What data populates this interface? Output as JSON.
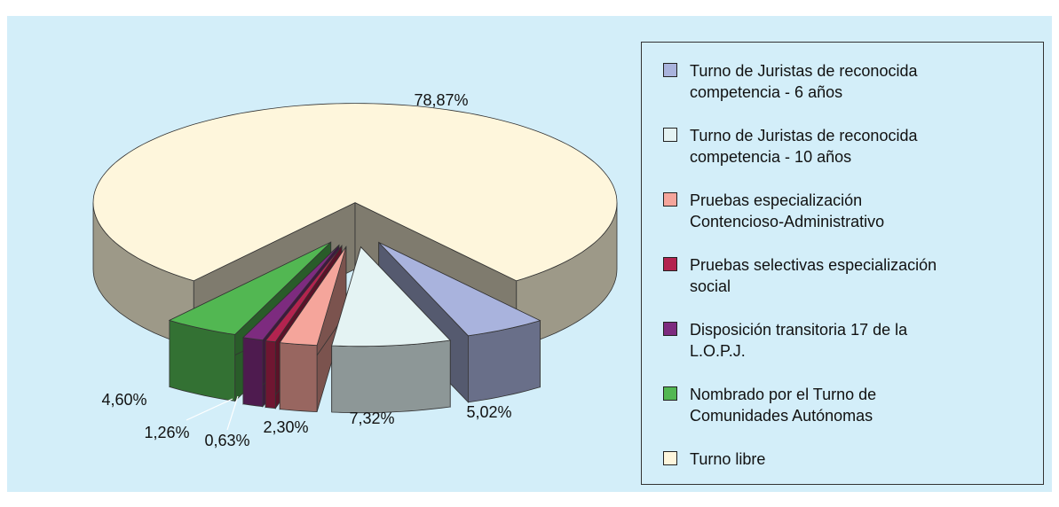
{
  "chart_data": {
    "type": "pie",
    "categories": [
      "Turno de Juristas de reconocida competencia - 6 años",
      "Turno de Juristas de reconocida competencia - 10 años",
      "Pruebas especialización Contencioso-Administrativo",
      "Pruebas selectivas especialización social",
      "Disposición transitoria 17 de la L.O.P.J.",
      "Nombrado por el Turno de Comunidades Autónomas",
      "Turno libre"
    ],
    "values": [
      5.02,
      7.32,
      2.3,
      0.63,
      1.26,
      4.6,
      78.87
    ],
    "value_labels": [
      "5,02%",
      "7,32%",
      "2,30%",
      "0,63%",
      "1,26%",
      "4,60%",
      "78,87%"
    ],
    "colors": [
      "#a9b3dd",
      "#e4f3f3",
      "#f5a59b",
      "#b3234f",
      "#7d2b7f",
      "#52b752",
      "#fef6dc"
    ],
    "legend": "right"
  }
}
